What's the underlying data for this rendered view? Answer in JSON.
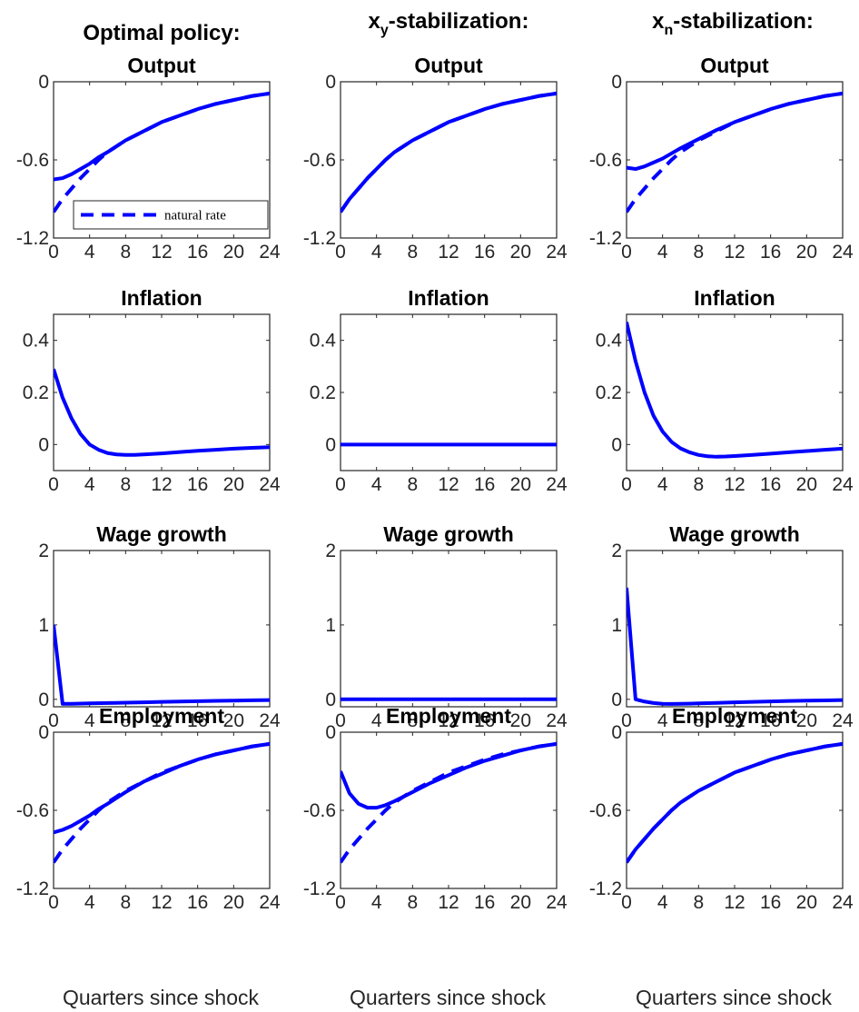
{
  "column_headers": [
    {
      "main": "Optimal policy:",
      "sub": ""
    },
    {
      "main": "x",
      "sub": "y",
      "rest": "-stabilization:"
    },
    {
      "main": "x",
      "sub": "n",
      "rest": "-stabilization:"
    }
  ],
  "xlabel": "Quarters since shock",
  "colors": {
    "series": "#0000ff",
    "axis": "#262626"
  },
  "chart_data": [
    {
      "type": "line",
      "title": "Output",
      "row": 0,
      "col": 0,
      "xlim": [
        0,
        24
      ],
      "ylim": [
        -1.2,
        0
      ],
      "xticks": [
        0,
        4,
        8,
        12,
        16,
        20,
        24
      ],
      "yticks": [
        {
          "v": 0,
          "label": "0"
        },
        {
          "v": -0.6,
          "label": "-0.6"
        },
        {
          "v": -1.2,
          "label": "-1.2"
        }
      ],
      "legend": {
        "entries": [
          "natural rate"
        ],
        "placement": "bottom"
      },
      "series": [
        {
          "style": "solid",
          "x": [
            0,
            1,
            2,
            3,
            4,
            5,
            6,
            8,
            10,
            12,
            14,
            16,
            18,
            20,
            22,
            24
          ],
          "y": [
            -0.75,
            -0.74,
            -0.71,
            -0.67,
            -0.63,
            -0.58,
            -0.54,
            -0.45,
            -0.38,
            -0.31,
            -0.26,
            -0.21,
            -0.17,
            -0.14,
            -0.11,
            -0.09
          ]
        },
        {
          "style": "dashed",
          "x": [
            0,
            1,
            2,
            3,
            4,
            5,
            6,
            8,
            10,
            12,
            14,
            16,
            18,
            20,
            22,
            24
          ],
          "y": [
            -1.0,
            -0.9,
            -0.82,
            -0.74,
            -0.67,
            -0.6,
            -0.54,
            -0.45,
            -0.38,
            -0.31,
            -0.26,
            -0.21,
            -0.17,
            -0.14,
            -0.11,
            -0.09
          ]
        }
      ]
    },
    {
      "type": "line",
      "title": "Output",
      "row": 0,
      "col": 1,
      "xlim": [
        0,
        24
      ],
      "ylim": [
        -1.2,
        0
      ],
      "xticks": [
        0,
        4,
        8,
        12,
        16,
        20,
        24
      ],
      "yticks": [
        {
          "v": 0,
          "label": "0"
        },
        {
          "v": -0.6,
          "label": "-0.6"
        },
        {
          "v": -1.2,
          "label": "-1.2"
        }
      ],
      "series": [
        {
          "style": "solid",
          "x": [
            0,
            1,
            2,
            3,
            4,
            5,
            6,
            8,
            10,
            12,
            14,
            16,
            18,
            20,
            22,
            24
          ],
          "y": [
            -1.0,
            -0.9,
            -0.82,
            -0.74,
            -0.67,
            -0.6,
            -0.54,
            -0.45,
            -0.38,
            -0.31,
            -0.26,
            -0.21,
            -0.17,
            -0.14,
            -0.11,
            -0.09
          ]
        },
        {
          "style": "dashed",
          "x": [
            0,
            1,
            2,
            3,
            4,
            5,
            6,
            8,
            10,
            12,
            14,
            16,
            18,
            20,
            22,
            24
          ],
          "y": [
            -1.0,
            -0.9,
            -0.82,
            -0.74,
            -0.67,
            -0.6,
            -0.54,
            -0.45,
            -0.38,
            -0.31,
            -0.26,
            -0.21,
            -0.17,
            -0.14,
            -0.11,
            -0.09
          ]
        }
      ]
    },
    {
      "type": "line",
      "title": "Output",
      "row": 0,
      "col": 2,
      "xlim": [
        0,
        24
      ],
      "ylim": [
        -1.2,
        0
      ],
      "xticks": [
        0,
        4,
        8,
        12,
        16,
        20,
        24
      ],
      "yticks": [
        {
          "v": 0,
          "label": "0"
        },
        {
          "v": -0.6,
          "label": "-0.6"
        },
        {
          "v": -1.2,
          "label": "-1.2"
        }
      ],
      "series": [
        {
          "style": "solid",
          "x": [
            0,
            1,
            2,
            3,
            4,
            5,
            6,
            8,
            10,
            12,
            14,
            16,
            18,
            20,
            22,
            24
          ],
          "y": [
            -0.66,
            -0.67,
            -0.65,
            -0.62,
            -0.59,
            -0.55,
            -0.51,
            -0.44,
            -0.37,
            -0.31,
            -0.26,
            -0.21,
            -0.17,
            -0.14,
            -0.11,
            -0.09
          ]
        },
        {
          "style": "dashed",
          "x": [
            0,
            1,
            2,
            3,
            4,
            5,
            6,
            8,
            10,
            12,
            14,
            16,
            18,
            20,
            22,
            24
          ],
          "y": [
            -1.0,
            -0.9,
            -0.82,
            -0.74,
            -0.67,
            -0.6,
            -0.54,
            -0.45,
            -0.38,
            -0.31,
            -0.26,
            -0.21,
            -0.17,
            -0.14,
            -0.11,
            -0.09
          ]
        }
      ]
    },
    {
      "type": "line",
      "title": "Inflation",
      "row": 1,
      "col": 0,
      "xlim": [
        0,
        24
      ],
      "ylim": [
        -0.1,
        0.5
      ],
      "xticks": [
        0,
        4,
        8,
        12,
        16,
        20,
        24
      ],
      "yticks": [
        {
          "v": 0.4,
          "label": "0.4"
        },
        {
          "v": 0.2,
          "label": "0.2"
        },
        {
          "v": 0,
          "label": "0"
        }
      ],
      "series": [
        {
          "style": "solid",
          "x": [
            0,
            1,
            2,
            3,
            4,
            5,
            6,
            7,
            8,
            9,
            10,
            12,
            14,
            16,
            18,
            20,
            22,
            24
          ],
          "y": [
            0.29,
            0.18,
            0.1,
            0.04,
            0.0,
            -0.02,
            -0.033,
            -0.038,
            -0.04,
            -0.04,
            -0.038,
            -0.034,
            -0.029,
            -0.024,
            -0.02,
            -0.016,
            -0.013,
            -0.01
          ]
        }
      ]
    },
    {
      "type": "line",
      "title": "Inflation",
      "row": 1,
      "col": 1,
      "xlim": [
        0,
        24
      ],
      "ylim": [
        -0.1,
        0.5
      ],
      "xticks": [
        0,
        4,
        8,
        12,
        16,
        20,
        24
      ],
      "yticks": [
        {
          "v": 0.4,
          "label": "0.4"
        },
        {
          "v": 0.2,
          "label": "0.2"
        },
        {
          "v": 0,
          "label": "0"
        }
      ],
      "series": [
        {
          "style": "solid",
          "x": [
            0,
            24
          ],
          "y": [
            0,
            0
          ]
        }
      ]
    },
    {
      "type": "line",
      "title": "Inflation",
      "row": 1,
      "col": 2,
      "xlim": [
        0,
        24
      ],
      "ylim": [
        -0.1,
        0.5
      ],
      "xticks": [
        0,
        4,
        8,
        12,
        16,
        20,
        24
      ],
      "yticks": [
        {
          "v": 0.4,
          "label": "0.4"
        },
        {
          "v": 0.2,
          "label": "0.2"
        },
        {
          "v": 0,
          "label": "0"
        }
      ],
      "series": [
        {
          "style": "solid",
          "x": [
            0,
            1,
            2,
            3,
            4,
            5,
            6,
            7,
            8,
            9,
            10,
            11,
            12,
            14,
            16,
            18,
            20,
            22,
            24
          ],
          "y": [
            0.47,
            0.32,
            0.2,
            0.11,
            0.05,
            0.01,
            -0.015,
            -0.03,
            -0.04,
            -0.045,
            -0.047,
            -0.046,
            -0.044,
            -0.04,
            -0.035,
            -0.03,
            -0.025,
            -0.02,
            -0.016
          ]
        }
      ]
    },
    {
      "type": "line",
      "title": "Wage growth",
      "row": 2,
      "col": 0,
      "xlim": [
        0,
        24
      ],
      "ylim": [
        -0.1,
        2
      ],
      "xticks": [
        0,
        4,
        8,
        12,
        16,
        20,
        24
      ],
      "yticks": [
        {
          "v": 2,
          "label": "2"
        },
        {
          "v": 1,
          "label": "1"
        },
        {
          "v": 0,
          "label": "0"
        }
      ],
      "series": [
        {
          "style": "solid",
          "x": [
            0,
            1,
            2,
            4,
            6,
            8,
            10,
            12,
            14,
            16,
            18,
            20,
            22,
            24
          ],
          "y": [
            1.0,
            -0.06,
            -0.06,
            -0.055,
            -0.05,
            -0.045,
            -0.04,
            -0.035,
            -0.03,
            -0.025,
            -0.02,
            -0.017,
            -0.013,
            -0.01
          ]
        }
      ]
    },
    {
      "type": "line",
      "title": "Wage growth",
      "row": 2,
      "col": 1,
      "xlim": [
        0,
        24
      ],
      "ylim": [
        -0.1,
        2
      ],
      "xticks": [
        0,
        4,
        8,
        12,
        16,
        20,
        24
      ],
      "yticks": [
        {
          "v": 2,
          "label": "2"
        },
        {
          "v": 1,
          "label": "1"
        },
        {
          "v": 0,
          "label": "0"
        }
      ],
      "series": [
        {
          "style": "solid",
          "x": [
            0,
            24
          ],
          "y": [
            0,
            0
          ]
        }
      ]
    },
    {
      "type": "line",
      "title": "Wage growth",
      "row": 2,
      "col": 2,
      "xlim": [
        0,
        24
      ],
      "ylim": [
        -0.1,
        2
      ],
      "xticks": [
        0,
        4,
        8,
        12,
        16,
        20,
        24
      ],
      "yticks": [
        {
          "v": 2,
          "label": "2"
        },
        {
          "v": 1,
          "label": "1"
        },
        {
          "v": 0,
          "label": "0"
        }
      ],
      "series": [
        {
          "style": "solid",
          "x": [
            0,
            1,
            2,
            3,
            4,
            5,
            6,
            8,
            10,
            12,
            14,
            16,
            18,
            20,
            22,
            24
          ],
          "y": [
            1.5,
            0.0,
            -0.03,
            -0.05,
            -0.06,
            -0.062,
            -0.06,
            -0.055,
            -0.048,
            -0.04,
            -0.034,
            -0.028,
            -0.022,
            -0.018,
            -0.014,
            -0.01
          ]
        }
      ]
    },
    {
      "type": "line",
      "title": "Employment",
      "row": 3,
      "col": 0,
      "xlim": [
        0,
        24
      ],
      "ylim": [
        -1.2,
        0
      ],
      "xticks": [
        0,
        4,
        8,
        12,
        16,
        20,
        24
      ],
      "yticks": [
        {
          "v": 0,
          "label": "0"
        },
        {
          "v": -0.6,
          "label": "-0.6"
        },
        {
          "v": -1.2,
          "label": "-1.2"
        }
      ],
      "series": [
        {
          "style": "solid",
          "x": [
            0,
            1,
            2,
            3,
            4,
            5,
            6,
            8,
            10,
            12,
            14,
            16,
            18,
            20,
            22,
            24
          ],
          "y": [
            -0.77,
            -0.75,
            -0.72,
            -0.68,
            -0.64,
            -0.59,
            -0.55,
            -0.46,
            -0.38,
            -0.32,
            -0.26,
            -0.21,
            -0.17,
            -0.14,
            -0.11,
            -0.09
          ]
        },
        {
          "style": "dashed",
          "x": [
            0,
            1,
            2,
            3,
            4,
            5,
            6,
            8,
            10,
            12,
            14,
            16,
            18,
            20,
            22,
            24
          ],
          "y": [
            -1.0,
            -0.9,
            -0.82,
            -0.74,
            -0.67,
            -0.6,
            -0.54,
            -0.45,
            -0.38,
            -0.31,
            -0.26,
            -0.21,
            -0.17,
            -0.14,
            -0.11,
            -0.09
          ]
        }
      ]
    },
    {
      "type": "line",
      "title": "Employment",
      "row": 3,
      "col": 1,
      "xlim": [
        0,
        24
      ],
      "ylim": [
        -1.2,
        0
      ],
      "xticks": [
        0,
        4,
        8,
        12,
        16,
        20,
        24
      ],
      "yticks": [
        {
          "v": 0,
          "label": "0"
        },
        {
          "v": -0.6,
          "label": "-0.6"
        },
        {
          "v": -1.2,
          "label": "-1.2"
        }
      ],
      "series": [
        {
          "style": "solid",
          "x": [
            0,
            1,
            2,
            3,
            4,
            5,
            6,
            8,
            10,
            12,
            14,
            16,
            18,
            20,
            22,
            24
          ],
          "y": [
            -0.3,
            -0.47,
            -0.55,
            -0.58,
            -0.58,
            -0.56,
            -0.53,
            -0.46,
            -0.39,
            -0.33,
            -0.27,
            -0.22,
            -0.18,
            -0.14,
            -0.11,
            -0.09
          ]
        },
        {
          "style": "dashed",
          "x": [
            0,
            1,
            2,
            3,
            4,
            5,
            6,
            8,
            10,
            12,
            14,
            16,
            18,
            20,
            22,
            24
          ],
          "y": [
            -1.0,
            -0.9,
            -0.82,
            -0.74,
            -0.67,
            -0.6,
            -0.54,
            -0.45,
            -0.38,
            -0.31,
            -0.26,
            -0.21,
            -0.17,
            -0.14,
            -0.11,
            -0.09
          ]
        }
      ]
    },
    {
      "type": "line",
      "title": "Employment",
      "row": 3,
      "col": 2,
      "xlim": [
        0,
        24
      ],
      "ylim": [
        -1.2,
        0
      ],
      "xticks": [
        0,
        4,
        8,
        12,
        16,
        20,
        24
      ],
      "yticks": [
        {
          "v": 0,
          "label": "0"
        },
        {
          "v": -0.6,
          "label": "-0.6"
        },
        {
          "v": -1.2,
          "label": "-1.2"
        }
      ],
      "series": [
        {
          "style": "solid",
          "x": [
            0,
            1,
            2,
            3,
            4,
            5,
            6,
            8,
            10,
            12,
            14,
            16,
            18,
            20,
            22,
            24
          ],
          "y": [
            -1.0,
            -0.9,
            -0.82,
            -0.74,
            -0.67,
            -0.6,
            -0.54,
            -0.45,
            -0.38,
            -0.31,
            -0.26,
            -0.21,
            -0.17,
            -0.14,
            -0.11,
            -0.09
          ]
        },
        {
          "style": "dashed",
          "x": [
            0,
            1,
            2,
            3,
            4,
            5,
            6,
            8,
            10,
            12,
            14,
            16,
            18,
            20,
            22,
            24
          ],
          "y": [
            -1.0,
            -0.9,
            -0.82,
            -0.74,
            -0.67,
            -0.6,
            -0.54,
            -0.45,
            -0.38,
            -0.31,
            -0.26,
            -0.21,
            -0.17,
            -0.14,
            -0.11,
            -0.09
          ]
        }
      ]
    }
  ]
}
